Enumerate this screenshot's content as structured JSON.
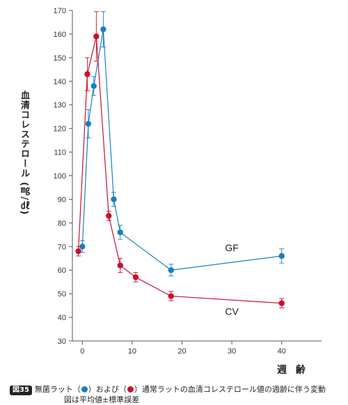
{
  "chart_data": {
    "type": "line",
    "title": "",
    "xlabel": "週 齢",
    "ylabel": "血清コレステロール (㎎/㎗)",
    "xlim": [
      -2,
      48
    ],
    "ylim": [
      30,
      170
    ],
    "x_ticks": [
      0,
      10,
      20,
      30,
      40
    ],
    "y_ticks": [
      30,
      40,
      50,
      60,
      70,
      80,
      90,
      100,
      110,
      120,
      130,
      140,
      150,
      160,
      170
    ],
    "grid": false,
    "legend": "none",
    "series": [
      {
        "name": "GF",
        "color": "#1a7fc0",
        "x": [
          0,
          1.2,
          2.3,
          4.2,
          6.3,
          7.6,
          17.8,
          40
        ],
        "y": [
          70,
          122,
          138,
          162,
          90,
          76,
          60,
          66
        ],
        "err": [
          2.5,
          6,
          4,
          7.5,
          3,
          3,
          2.5,
          3
        ]
      },
      {
        "name": "CV",
        "color": "#c8102e",
        "x": [
          -0.8,
          1.0,
          2.8,
          5.3,
          7.6,
          10.7,
          17.8,
          40
        ],
        "y": [
          68,
          143,
          159,
          83,
          62,
          57,
          49,
          46
        ],
        "err": [
          2,
          7,
          10.5,
          2,
          3,
          2,
          2,
          2
        ]
      }
    ],
    "annotations": [
      {
        "text": "GF",
        "x": 30,
        "y": 68
      },
      {
        "text": "CV",
        "x": 30,
        "y": 41
      }
    ]
  },
  "caption": {
    "badge": "図35",
    "text_part1": "無菌ラット（",
    "text_part2": "）および（",
    "text_part3": "）通常ラットの血清コレステロール値の週齢に伴う変動",
    "line2": "図は平均値±標準誤差"
  }
}
